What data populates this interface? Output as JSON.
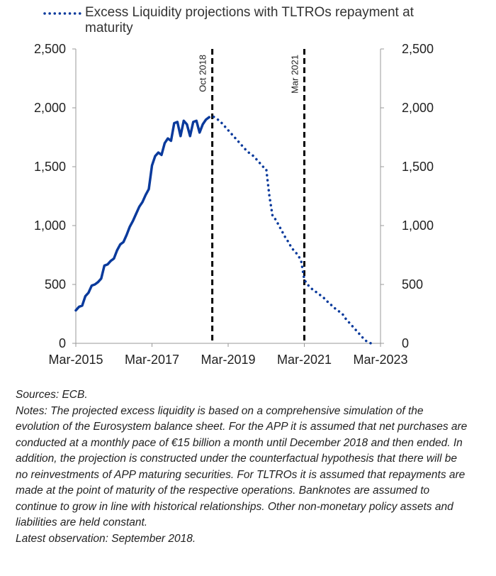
{
  "chart_data": {
    "type": "line",
    "xlim": [
      {
        "value": "2015-03",
        "label": "Mar-2015"
      },
      {
        "value": "2023-03",
        "label": "Mar-2023"
      }
    ],
    "xticks": [
      {
        "value": "2015-03",
        "label": "Mar-2015"
      },
      {
        "value": "2017-03",
        "label": "Mar-2017"
      },
      {
        "value": "2019-03",
        "label": "Mar-2019"
      },
      {
        "value": "2021-03",
        "label": "Mar-2021"
      },
      {
        "value": "2023-03",
        "label": "Mar-2023"
      }
    ],
    "ylim": [
      0,
      2500
    ],
    "yticks": [
      0,
      {
        "value": 500,
        "label": "500"
      },
      {
        "value": 1000,
        "label": "1,000"
      },
      {
        "value": 1500,
        "label": "1,500"
      },
      {
        "value": 2000,
        "label": "2,000"
      },
      {
        "value": 2500,
        "label": "2,500"
      }
    ],
    "y2lim": [
      0,
      2500
    ],
    "y2ticks": [
      0,
      {
        "value": 500,
        "label": "500"
      },
      {
        "value": 1000,
        "label": "1,000"
      },
      {
        "value": 1500,
        "label": "1,500"
      },
      {
        "value": 2000,
        "label": "2,000"
      },
      {
        "value": 2500,
        "label": "2,500"
      }
    ],
    "series": [
      {
        "color": "#0a3a9c",
        "style": "solid",
        "x": [
          "2015-03",
          "2015-04",
          "2015-05",
          "2015-06",
          "2015-07",
          "2015-08",
          "2015-09",
          "2015-10",
          "2015-11",
          "2015-12",
          "2016-01",
          "2016-02",
          "2016-03",
          "2016-04",
          "2016-05",
          "2016-06",
          "2016-07",
          "2016-08",
          "2016-09",
          "2016-10",
          "2016-11",
          "2016-12",
          "2017-01",
          "2017-02",
          "2017-03",
          "2017-04",
          "2017-05",
          "2017-06",
          "2017-07",
          "2017-08",
          "2017-09",
          "2017-10",
          "2017-11",
          "2017-12",
          "2018-01",
          "2018-02",
          "2018-03",
          "2018-04",
          "2018-05",
          "2018-06",
          "2018-07",
          "2018-08",
          "2018-09"
        ],
        "values": [
          280,
          310,
          320,
          400,
          430,
          490,
          500,
          520,
          550,
          660,
          670,
          700,
          720,
          790,
          840,
          860,
          920,
          990,
          1040,
          1100,
          1160,
          1200,
          1260,
          1310,
          1510,
          1590,
          1620,
          1600,
          1700,
          1740,
          1720,
          1870,
          1880,
          1760,
          1890,
          1860,
          1760,
          1880,
          1890,
          1790,
          1860,
          1900,
          1920
        ]
      },
      {
        "name": "Excess Liquidity projections with TLTROs repayment at maturity",
        "color": "#0a3a9c",
        "style": "dotted",
        "x": [
          "2018-09",
          "2018-10",
          "2018-11",
          "2018-12",
          "2019-01",
          "2019-02",
          "2019-03",
          "2019-04",
          "2019-05",
          "2019-06",
          "2019-07",
          "2019-08",
          "2019-09",
          "2019-10",
          "2019-11",
          "2019-12",
          "2020-01",
          "2020-02",
          "2020-03",
          "2020-04",
          "2020-05",
          "2020-06",
          "2020-07",
          "2020-08",
          "2020-09",
          "2020-10",
          "2020-11",
          "2020-12",
          "2021-01",
          "2021-02",
          "2021-03",
          "2021-04",
          "2021-05",
          "2021-06",
          "2021-07",
          "2021-08",
          "2021-09",
          "2021-10",
          "2021-11",
          "2021-12",
          "2022-01",
          "2022-02",
          "2022-03",
          "2022-04",
          "2022-05",
          "2022-06",
          "2022-07",
          "2022-08",
          "2022-09",
          "2022-10",
          "2022-11",
          "2022-12"
        ],
        "values": [
          1920,
          1930,
          1915,
          1895,
          1870,
          1840,
          1810,
          1780,
          1750,
          1720,
          1690,
          1660,
          1630,
          1610,
          1590,
          1560,
          1530,
          1500,
          1480,
          1250,
          1080,
          1050,
          1000,
          950,
          900,
          860,
          810,
          780,
          750,
          700,
          540,
          500,
          470,
          450,
          430,
          410,
          390,
          360,
          340,
          310,
          290,
          270,
          250,
          210,
          180,
          150,
          120,
          90,
          60,
          30,
          10,
          0
        ]
      }
    ],
    "annotations": [
      {
        "x": "2018-10",
        "label": "Oct 2018"
      },
      {
        "x": "2021-03",
        "label": "Mar 2021"
      }
    ],
    "sources": "Sources: ECB.",
    "notes": "Notes: The projected excess liquidity is based on a comprehensive simulation of the evolution of the Eurosystem balance sheet. For the APP it is assumed that net purchases are conducted at a monthly pace of €15 billion a month until December 2018 and then ended. In addition, the projection is constructed under the counterfactual hypothesis that there will be no reinvestments of APP maturing securities. For TLTROs it is assumed that repayments are made at the point of maturity of the respective operations. Banknotes are assumed to continue to grow in line with historical relationships. Other non-monetary policy assets and liabilities are held constant.",
    "latest": "Latest observation: September 2018."
  }
}
